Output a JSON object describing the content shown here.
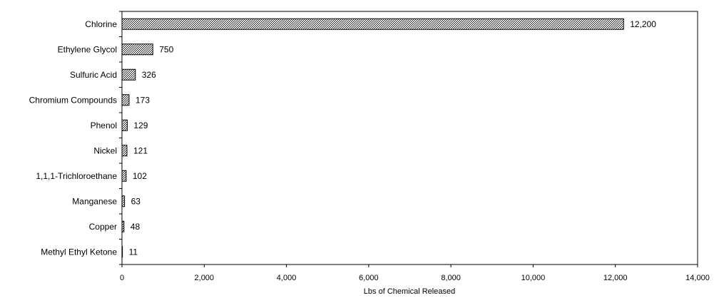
{
  "chart_data": {
    "type": "bar",
    "orientation": "horizontal",
    "categories": [
      "Chlorine",
      "Ethylene Glycol",
      "Sulfuric Acid",
      "Chromium Compounds",
      "Phenol",
      "Nickel",
      "1,1,1-Trichloroethane",
      "Manganese",
      "Copper",
      "Methyl Ethyl Ketone"
    ],
    "values": [
      12200,
      750,
      326,
      173,
      129,
      121,
      102,
      63,
      48,
      11
    ],
    "value_labels": [
      "12,200",
      "750",
      "326",
      "173",
      "129",
      "121",
      "102",
      "63",
      "48",
      "11"
    ],
    "xlabel": "Lbs of Chemical Released",
    "ylabel": "",
    "title": "",
    "xlim": [
      0,
      14000
    ],
    "xticks": [
      0,
      2000,
      4000,
      6000,
      8000,
      10000,
      12000,
      14000
    ],
    "xtick_labels": [
      "0",
      "2,000",
      "4,000",
      "6,000",
      "8,000",
      "10,000",
      "12,000",
      "14,000"
    ],
    "grid": false,
    "legend": "none",
    "bar_fill": "crosshatch",
    "colors": {
      "bar_fg": "#000000",
      "bar_bg": "#ffffff"
    }
  }
}
